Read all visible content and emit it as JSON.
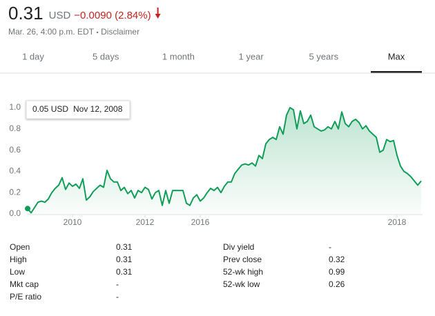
{
  "header": {
    "price": "0.31",
    "currency": "USD",
    "change": "−0.0090 (2.84%)",
    "timestamp": "Mar. 26, 4:00 p.m. EDT",
    "disclaimer": "Disclaimer"
  },
  "tabs": [
    "1 day",
    "5 days",
    "1 month",
    "1 year",
    "5 years",
    "Max"
  ],
  "selected_tab": 5,
  "chart_data": {
    "type": "line",
    "color": "#0f9d58",
    "categories": [
      null,
      null,
      null,
      null,
      null,
      null,
      null,
      null,
      null,
      null,
      null,
      null,
      null,
      "2010",
      null,
      null,
      null,
      null,
      null,
      null,
      null,
      null,
      null,
      null,
      null,
      null,
      null,
      null,
      null,
      null,
      null,
      null,
      null,
      null,
      "2012",
      null,
      null,
      null,
      null,
      null,
      null,
      null,
      null,
      null,
      null,
      null,
      null,
      null,
      null,
      null,
      "2016",
      null,
      null,
      null,
      null,
      null,
      null,
      null,
      null,
      null,
      null,
      null,
      null,
      null,
      null,
      null,
      null,
      null,
      null,
      null,
      null,
      null,
      null,
      null,
      null,
      null,
      null,
      null,
      null,
      null,
      null,
      null,
      null,
      null,
      null,
      null,
      null,
      null,
      null,
      null,
      null,
      null,
      null,
      null,
      null,
      null,
      null,
      null,
      null,
      null,
      null,
      null,
      null,
      null,
      null,
      null,
      null,
      "2018",
      null,
      null,
      null,
      null,
      null,
      null,
      null
    ],
    "values": [
      0.05,
      0.01,
      0.06,
      0.11,
      0.12,
      0.11,
      0.14,
      0.2,
      0.24,
      0.27,
      0.34,
      0.23,
      0.29,
      0.26,
      0.28,
      0.24,
      0.33,
      0.13,
      0.16,
      0.21,
      0.24,
      0.27,
      0.25,
      0.41,
      0.33,
      0.3,
      0.3,
      0.22,
      0.25,
      0.19,
      0.22,
      0.15,
      0.22,
      0.2,
      0.25,
      0.23,
      0.14,
      0.2,
      0.22,
      0.08,
      0.22,
      0.1,
      0.22,
      0.22,
      0.22,
      0.22,
      0.1,
      0.08,
      0.15,
      0.18,
      0.12,
      0.15,
      0.2,
      0.24,
      0.22,
      0.25,
      0.2,
      0.26,
      0.3,
      0.3,
      0.38,
      0.42,
      0.46,
      0.47,
      0.46,
      0.48,
      0.45,
      0.55,
      0.52,
      0.66,
      0.7,
      0.72,
      0.7,
      0.82,
      0.75,
      0.93,
      1.0,
      0.98,
      0.8,
      0.97,
      0.85,
      0.87,
      0.93,
      0.82,
      0.8,
      0.78,
      0.79,
      0.82,
      0.8,
      0.87,
      0.8,
      0.96,
      0.85,
      0.82,
      0.87,
      0.89,
      0.86,
      0.8,
      0.83,
      0.78,
      0.75,
      0.72,
      0.58,
      0.6,
      0.7,
      0.68,
      0.69,
      0.55,
      0.45,
      0.4,
      0.38,
      0.35,
      0.31,
      0.27,
      0.31
    ],
    "ylim": [
      0,
      1
    ],
    "yticks": [
      {
        "value": 0,
        "label": "0.0"
      },
      0.2,
      0.4,
      0.6,
      0.8,
      {
        "value": 1,
        "label": "1.0"
      }
    ],
    "grid": false,
    "annotation": {
      "text": "0.05 USD",
      "date": "Nov 12, 2008"
    }
  },
  "stats": {
    "left": [
      [
        "Open",
        "0.31"
      ],
      [
        "High",
        "0.31"
      ],
      [
        "Low",
        "0.31"
      ],
      [
        "Mkt cap",
        "-"
      ],
      [
        "P/E ratio",
        "-"
      ]
    ],
    "right": [
      [
        "Div yield",
        "-"
      ],
      [
        "Prev close",
        "0.32"
      ],
      [
        "52-wk high",
        "0.99"
      ],
      [
        "52-wk low",
        "0.26"
      ]
    ]
  }
}
